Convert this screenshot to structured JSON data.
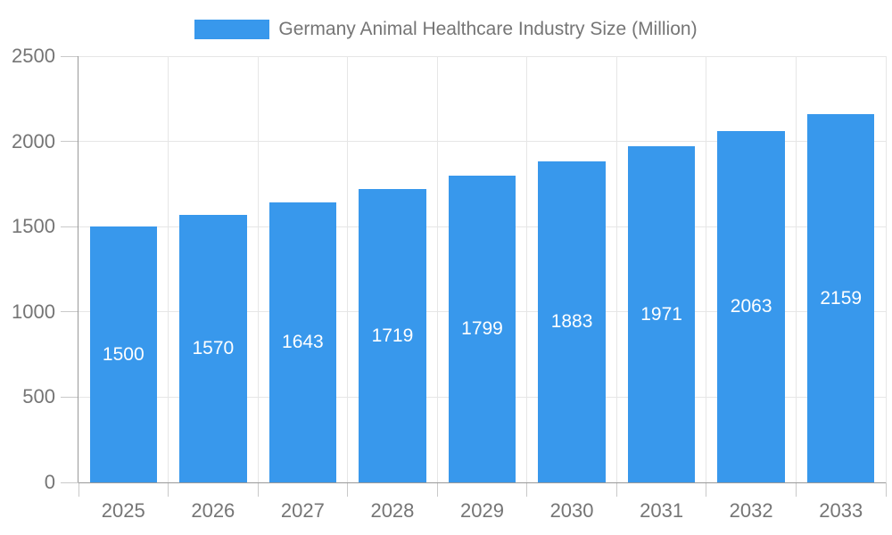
{
  "chart_data": {
    "type": "bar",
    "title": "Germany Animal Healthcare Industry Size (Million)",
    "series_name": "Germany Animal Healthcare Industry Size (Million)",
    "categories": [
      "2025",
      "2026",
      "2027",
      "2028",
      "2029",
      "2030",
      "2031",
      "2032",
      "2033"
    ],
    "values": [
      1500,
      1570,
      1643,
      1719,
      1799,
      1883,
      1971,
      2063,
      2159
    ],
    "xlabel": "",
    "ylabel": "",
    "ylim": [
      0,
      2500
    ],
    "ytick_step": 500,
    "yticks": [
      0,
      500,
      1000,
      1500,
      2000,
      2500
    ],
    "grid": true,
    "legend_position": "top",
    "bar_color": "#3898EC",
    "value_label_color": "#FFFFFF",
    "axis_label_color": "#757575",
    "axis_line_color": "#999999",
    "gridline_color": "#E6E6E6",
    "tick_color": "#C9C9C9"
  }
}
